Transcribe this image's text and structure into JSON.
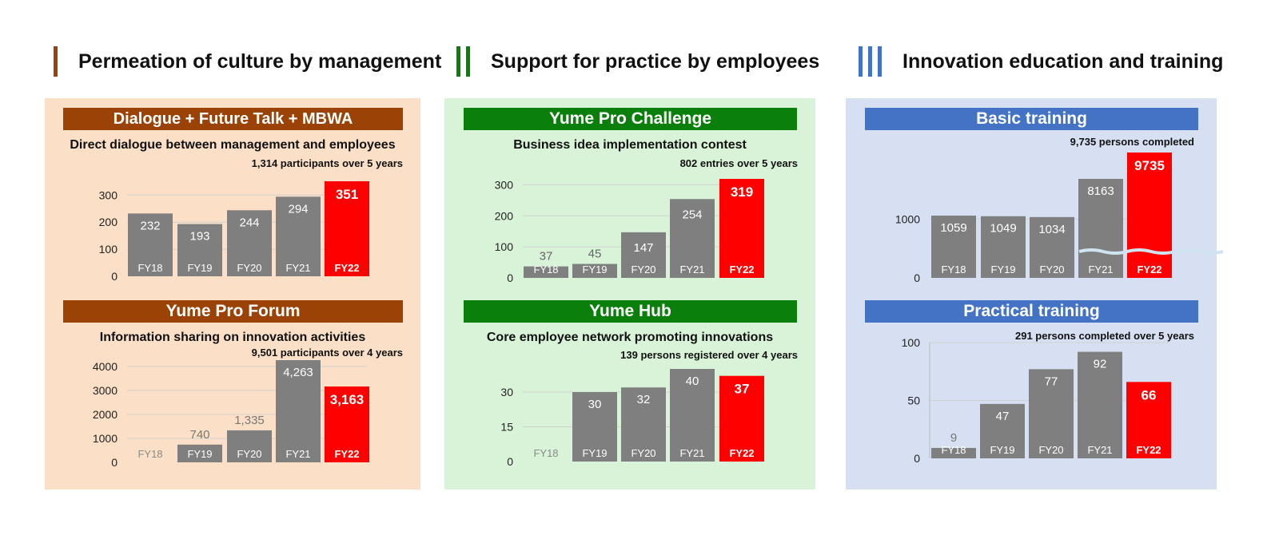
{
  "sections": [
    {
      "title": "Permeation of culture by management",
      "roman": "I",
      "color": "#9b4306",
      "panel_bg": "#fbdfc6",
      "charts": [
        {
          "banner": "Dialogue + Future Talk + MBWA",
          "subtitle": "Direct dialogue between management and employees",
          "note": "1,314 participants over 5 years"
        },
        {
          "banner": "Yume Pro Forum",
          "subtitle": "Information sharing on innovation activities",
          "note": "9,501 participants over 4 years"
        }
      ]
    },
    {
      "title": "Support for practice by employees",
      "roman": "II",
      "color": "#0b7f0b",
      "panel_bg": "#d9f3d9",
      "charts": [
        {
          "banner": "Yume Pro Challenge",
          "subtitle": "Business idea implementation contest",
          "note": "802 entries over 5 years"
        },
        {
          "banner": "Yume Hub",
          "subtitle": "Core employee network promoting innovations",
          "note": "139 persons registered over 4 years"
        }
      ]
    },
    {
      "title": "Innovation education and training",
      "roman": "III",
      "color": "#4472c4",
      "panel_bg": "#d6e0f2",
      "charts": [
        {
          "banner": "Basic training",
          "subtitle": "",
          "note": "9,735 persons completed"
        },
        {
          "banner": "Practical training",
          "subtitle": "",
          "note": "291 persons completed over 5 years"
        }
      ]
    }
  ],
  "colors": {
    "bar": "#7f7f7f",
    "highlight": "#ff0000",
    "grid": "#d0d0d0",
    "break_line": "#cfe3f0"
  },
  "chart_data": [
    {
      "type": "bar",
      "title": "Dialogue + Future Talk + MBWA",
      "categories": [
        "FY18",
        "FY19",
        "FY20",
        "FY21",
        "FY22"
      ],
      "values": [
        232,
        193,
        244,
        294,
        351
      ],
      "value_labels": [
        "232",
        "193",
        "244",
        "294",
        "351"
      ],
      "yticks": [
        "0",
        "100",
        "200",
        "300"
      ],
      "ylim": [
        0,
        351
      ],
      "highlight": "FY22"
    },
    {
      "type": "bar",
      "title": "Yume Pro Forum",
      "categories": [
        "FY18",
        "FY19",
        "FY20",
        "FY21",
        "FY22"
      ],
      "values": [
        0,
        740,
        1335,
        4263,
        3163
      ],
      "value_labels": [
        "",
        "740",
        "1,335",
        "4,263",
        "3,163"
      ],
      "yticks": [
        "0",
        "1000",
        "2000",
        "3000",
        "4000"
      ],
      "ylim": [
        0,
        4263
      ],
      "highlight": "FY22"
    },
    {
      "type": "bar",
      "title": "Yume Pro Challenge",
      "categories": [
        "FY18",
        "FY19",
        "FY20",
        "FY21",
        "FY22"
      ],
      "values": [
        37,
        45,
        147,
        254,
        319
      ],
      "value_labels": [
        "37",
        "45",
        "147",
        "254",
        "319"
      ],
      "yticks": [
        "0",
        "100",
        "200",
        "300"
      ],
      "ylim": [
        0,
        319
      ],
      "highlight": "FY22"
    },
    {
      "type": "bar",
      "title": "Yume Hub",
      "categories": [
        "FY18",
        "FY19",
        "FY20",
        "FY21",
        "FY22"
      ],
      "values": [
        0,
        30,
        32,
        40,
        37
      ],
      "value_labels": [
        "",
        "30",
        "32",
        "40",
        "37"
      ],
      "yticks": [
        "0",
        "15",
        "30"
      ],
      "ylim": [
        0,
        40
      ],
      "highlight": "FY22"
    },
    {
      "type": "bar",
      "title": "Basic training",
      "categories": [
        "FY18",
        "FY19",
        "FY20",
        "FY21",
        "FY22"
      ],
      "values": [
        1059,
        1049,
        1034,
        8163,
        9735
      ],
      "value_labels": [
        "1059",
        "1049",
        "1034",
        "8163",
        "9735"
      ],
      "yticks": [
        "0",
        "1000"
      ],
      "axis_break": true,
      "highlight": "FY22"
    },
    {
      "type": "bar",
      "title": "Practical training",
      "categories": [
        "FY18",
        "FY19",
        "FY20",
        "FY21",
        "FY22"
      ],
      "values": [
        9,
        47,
        77,
        92,
        66
      ],
      "value_labels": [
        "9",
        "47",
        "77",
        "92",
        "66"
      ],
      "yticks": [
        "0",
        "50",
        "100"
      ],
      "ylim": [
        0,
        100
      ],
      "highlight": "FY22"
    }
  ]
}
